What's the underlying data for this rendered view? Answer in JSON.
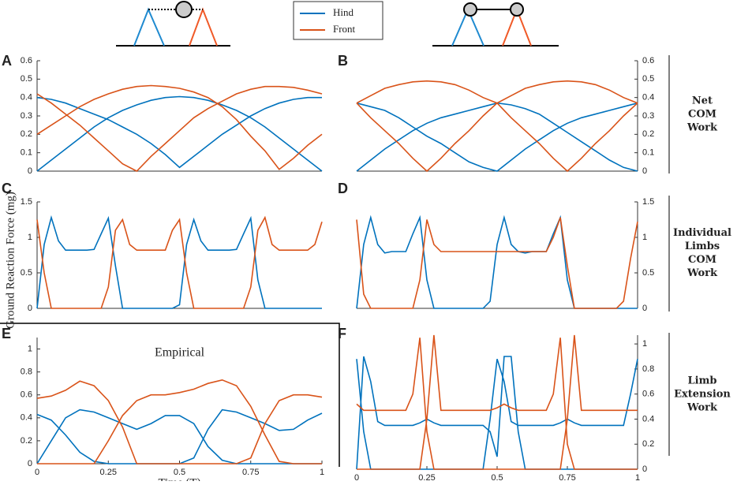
{
  "legend": [
    {
      "name": "Hind",
      "color": "#0072bd"
    },
    {
      "name": "Front",
      "color": "#d95319"
    }
  ],
  "ylabel": "Ground Reaction Force (mg)",
  "xlabel": "Time (T)",
  "row_labels": [
    [
      "Net",
      "COM",
      "Work"
    ],
    [
      "Individual",
      "Limbs",
      "COM",
      "Work"
    ],
    [
      "Limb",
      "Extension",
      "Work"
    ]
  ],
  "chart_data": [
    {
      "type": "line",
      "label": "A",
      "yaxis": "left",
      "x": [
        0,
        0.05,
        0.1,
        0.15,
        0.2,
        0.25,
        0.3,
        0.35,
        0.4,
        0.45,
        0.5,
        0.55,
        0.6,
        0.65,
        0.7,
        0.75,
        0.8,
        0.85,
        0.9,
        0.95,
        1
      ],
      "series": [
        {
          "color": "#0072bd",
          "values": [
            0,
            0.06,
            0.12,
            0.18,
            0.24,
            0.29,
            0.33,
            0.36,
            0.385,
            0.4,
            0.405,
            0.4,
            0.385,
            0.36,
            0.33,
            0.29,
            0.24,
            0.18,
            0.12,
            0.06,
            0
          ]
        },
        {
          "color": "#0072bd",
          "values": [
            0.4,
            0.39,
            0.37,
            0.34,
            0.31,
            0.28,
            0.24,
            0.2,
            0.15,
            0.09,
            0.02,
            0.08,
            0.14,
            0.2,
            0.25,
            0.3,
            0.34,
            0.37,
            0.39,
            0.4,
            0.4
          ]
        },
        {
          "color": "#d95319",
          "values": [
            0.2,
            0.25,
            0.3,
            0.35,
            0.39,
            0.42,
            0.445,
            0.46,
            0.465,
            0.46,
            0.45,
            0.43,
            0.4,
            0.35,
            0.28,
            0.19,
            0.11,
            0.01,
            0.07,
            0.14,
            0.2
          ]
        },
        {
          "color": "#d95319",
          "values": [
            0.42,
            0.37,
            0.31,
            0.25,
            0.18,
            0.11,
            0.04,
            0,
            0.08,
            0.15,
            0.22,
            0.29,
            0.34,
            0.38,
            0.42,
            0.445,
            0.46,
            0.46,
            0.455,
            0.44,
            0.42
          ]
        }
      ],
      "xlim": [
        0,
        1
      ],
      "ylim": [
        0,
        0.6
      ],
      "yticks": [
        0,
        0.1,
        0.2,
        0.3,
        0.4,
        0.5,
        0.6
      ]
    },
    {
      "type": "line",
      "label": "B",
      "yaxis": "right",
      "x": [
        0,
        0.05,
        0.1,
        0.15,
        0.2,
        0.25,
        0.3,
        0.35,
        0.4,
        0.45,
        0.5,
        0.55,
        0.6,
        0.65,
        0.7,
        0.75,
        0.8,
        0.85,
        0.9,
        0.95,
        1
      ],
      "series": [
        {
          "color": "#0072bd",
          "values": [
            0,
            0.06,
            0.12,
            0.17,
            0.22,
            0.26,
            0.29,
            0.31,
            0.33,
            0.35,
            0.37,
            0.36,
            0.34,
            0.31,
            0.26,
            0.21,
            0.16,
            0.11,
            0.06,
            0.02,
            0
          ]
        },
        {
          "color": "#0072bd",
          "values": [
            0.37,
            0.35,
            0.33,
            0.29,
            0.24,
            0.19,
            0.15,
            0.1,
            0.05,
            0.02,
            0,
            0.06,
            0.12,
            0.17,
            0.22,
            0.26,
            0.29,
            0.31,
            0.33,
            0.35,
            0.37
          ]
        },
        {
          "color": "#d95319",
          "values": [
            0.37,
            0.41,
            0.45,
            0.47,
            0.485,
            0.49,
            0.485,
            0.47,
            0.44,
            0.4,
            0.37,
            0.29,
            0.22,
            0.15,
            0.07,
            0,
            0.07,
            0.15,
            0.22,
            0.3,
            0.37
          ]
        },
        {
          "color": "#d95319",
          "values": [
            0.37,
            0.29,
            0.22,
            0.15,
            0.07,
            0,
            0.07,
            0.15,
            0.22,
            0.3,
            0.37,
            0.41,
            0.45,
            0.47,
            0.485,
            0.49,
            0.485,
            0.47,
            0.44,
            0.4,
            0.37
          ]
        }
      ],
      "xlim": [
        0,
        1
      ],
      "ylim": [
        0,
        0.6
      ],
      "yticks": [
        0,
        0.1,
        0.2,
        0.3,
        0.4,
        0.5,
        0.6
      ]
    },
    {
      "type": "line",
      "label": "C",
      "yaxis": "left",
      "x": [
        0,
        0.025,
        0.05,
        0.075,
        0.1,
        0.125,
        0.15,
        0.175,
        0.2,
        0.225,
        0.25,
        0.275,
        0.3,
        0.325,
        0.35,
        0.375,
        0.4,
        0.425,
        0.45,
        0.475,
        0.5,
        0.525,
        0.55,
        0.575,
        0.6,
        0.625,
        0.65,
        0.675,
        0.7,
        0.725,
        0.75,
        0.775,
        0.8,
        0.825,
        0.85,
        0.875,
        0.9,
        0.925,
        0.95,
        0.975,
        1
      ],
      "series": [
        {
          "color": "#0072bd",
          "values": [
            0,
            0.9,
            1.28,
            0.95,
            0.82,
            0.82,
            0.82,
            0.82,
            0.83,
            1.05,
            1.27,
            0.6,
            0,
            0,
            0,
            0,
            0,
            0,
            0,
            0,
            0.05,
            0.9,
            1.25,
            0.95,
            0.82,
            0.82,
            0.82,
            0.82,
            0.83,
            1.05,
            1.27,
            0.4,
            0,
            0,
            0,
            0,
            0,
            0,
            0,
            0,
            0
          ]
        },
        {
          "color": "#d95319",
          "values": [
            1.25,
            0.5,
            0,
            0,
            0,
            0,
            0,
            0,
            0,
            0,
            0.3,
            1.1,
            1.25,
            0.9,
            0.82,
            0.82,
            0.82,
            0.82,
            0.82,
            1.1,
            1.25,
            0.5,
            0,
            0,
            0,
            0,
            0,
            0,
            0,
            0,
            0.3,
            1.1,
            1.28,
            0.9,
            0.82,
            0.82,
            0.82,
            0.82,
            0.82,
            0.9,
            1.22
          ]
        }
      ],
      "xlim": [
        0,
        1
      ],
      "ylim": [
        0,
        1.5
      ],
      "yticks": [
        0,
        0.5,
        1,
        1.5
      ]
    },
    {
      "type": "line",
      "label": "D",
      "yaxis": "right",
      "x": [
        0,
        0.025,
        0.05,
        0.075,
        0.1,
        0.125,
        0.15,
        0.175,
        0.2,
        0.225,
        0.25,
        0.275,
        0.3,
        0.325,
        0.35,
        0.375,
        0.4,
        0.425,
        0.45,
        0.475,
        0.5,
        0.525,
        0.55,
        0.575,
        0.6,
        0.625,
        0.65,
        0.675,
        0.7,
        0.725,
        0.75,
        0.775,
        0.8,
        0.825,
        0.85,
        0.875,
        0.9,
        0.925,
        0.95,
        0.975,
        1
      ],
      "series": [
        {
          "color": "#0072bd",
          "values": [
            0,
            0.9,
            1.28,
            0.9,
            0.78,
            0.8,
            0.8,
            0.8,
            1.05,
            1.28,
            0.4,
            0,
            0,
            0,
            0,
            0,
            0,
            0,
            0,
            0.1,
            0.9,
            1.28,
            0.9,
            0.8,
            0.78,
            0.8,
            0.8,
            0.8,
            1.05,
            1.28,
            0.4,
            0,
            0,
            0,
            0,
            0,
            0,
            0,
            0,
            0,
            0
          ]
        },
        {
          "color": "#d95319",
          "values": [
            1.25,
            0.2,
            0,
            0,
            0,
            0,
            0,
            0,
            0,
            0.4,
            1.25,
            0.9,
            0.8,
            0.8,
            0.8,
            0.8,
            0.8,
            0.8,
            0.8,
            0.8,
            0.8,
            0.8,
            0.8,
            0.8,
            0.8,
            0.8,
            0.8,
            0.8,
            1.0,
            1.28,
            0.6,
            0,
            0,
            0,
            0,
            0,
            0,
            0,
            0.1,
            0.7,
            1.22
          ]
        }
      ],
      "xlim": [
        0,
        1
      ],
      "ylim": [
        0,
        1.5
      ],
      "yticks": [
        0,
        0.5,
        1,
        1.5
      ]
    },
    {
      "type": "line",
      "label": "E",
      "yaxis": "left",
      "annotation": "Empirical",
      "x": [
        0,
        0.05,
        0.1,
        0.15,
        0.2,
        0.25,
        0.3,
        0.35,
        0.4,
        0.45,
        0.5,
        0.55,
        0.6,
        0.65,
        0.7,
        0.75,
        0.8,
        0.85,
        0.9,
        0.95,
        1
      ],
      "series": [
        {
          "color": "#0072bd",
          "values": [
            0.43,
            0.38,
            0.25,
            0.1,
            0.02,
            0,
            0,
            0,
            0,
            0,
            0,
            0.05,
            0.3,
            0.47,
            0.45,
            0.4,
            0.35,
            0.29,
            0.3,
            0.38,
            0.44
          ]
        },
        {
          "color": "#0072bd",
          "values": [
            0,
            0.2,
            0.4,
            0.47,
            0.45,
            0.4,
            0.35,
            0.3,
            0.35,
            0.42,
            0.42,
            0.35,
            0.15,
            0.03,
            0,
            0,
            0,
            0,
            0,
            0,
            0
          ]
        },
        {
          "color": "#d95319",
          "values": [
            0.57,
            0.59,
            0.64,
            0.72,
            0.68,
            0.55,
            0.32,
            0,
            0,
            0,
            0,
            0,
            0,
            0,
            0,
            0.05,
            0.35,
            0.55,
            0.6,
            0.6,
            0.58
          ]
        },
        {
          "color": "#d95319",
          "values": [
            0,
            0,
            0,
            0,
            0,
            0.2,
            0.42,
            0.55,
            0.6,
            0.6,
            0.62,
            0.65,
            0.7,
            0.73,
            0.68,
            0.5,
            0.25,
            0.02,
            0,
            0,
            0
          ]
        }
      ],
      "xlim": [
        0,
        1
      ],
      "ylim": [
        0,
        1.1
      ],
      "yticks": [
        0,
        0.2,
        0.4,
        0.6,
        0.8,
        1
      ],
      "xticks": [
        0,
        0.25,
        0.5,
        0.75,
        1
      ]
    },
    {
      "type": "line",
      "label": "F",
      "yaxis": "right",
      "x": [
        0,
        0.025,
        0.05,
        0.075,
        0.1,
        0.125,
        0.15,
        0.175,
        0.2,
        0.225,
        0.25,
        0.275,
        0.3,
        0.325,
        0.35,
        0.375,
        0.4,
        0.425,
        0.45,
        0.475,
        0.5,
        0.525,
        0.55,
        0.575,
        0.6,
        0.625,
        0.65,
        0.675,
        0.7,
        0.725,
        0.75,
        0.775,
        0.8,
        0.825,
        0.85,
        0.875,
        0.9,
        0.925,
        0.95,
        0.975,
        1
      ],
      "series": [
        {
          "color": "#0072bd",
          "values": [
            0.88,
            0.3,
            0,
            0,
            0,
            0,
            0,
            0,
            0,
            0,
            0,
            0,
            0,
            0,
            0,
            0,
            0,
            0,
            0,
            0.4,
            0.88,
            0.7,
            0.38,
            0.35,
            0.35,
            0.35,
            0.35,
            0.35,
            0.35,
            0.37,
            0.4,
            0.37,
            0.35,
            0.35,
            0.35,
            0.35,
            0.35,
            0.35,
            0.35,
            0.6,
            0.88
          ]
        },
        {
          "color": "#0072bd",
          "values": [
            0,
            0.9,
            0.7,
            0.38,
            0.35,
            0.35,
            0.35,
            0.35,
            0.35,
            0.37,
            0.4,
            0.37,
            0.35,
            0.35,
            0.35,
            0.35,
            0.35,
            0.35,
            0.35,
            0.3,
            0.1,
            0.9,
            0.9,
            0.3,
            0,
            0,
            0,
            0,
            0,
            0,
            0,
            0,
            0,
            0,
            0,
            0,
            0,
            0,
            0,
            0,
            0
          ]
        },
        {
          "color": "#d95319",
          "values": [
            0.52,
            0.47,
            0.47,
            0.47,
            0.47,
            0.47,
            0.47,
            0.47,
            0.6,
            1.05,
            0.3,
            0,
            0,
            0,
            0,
            0,
            0,
            0,
            0,
            0,
            0,
            0,
            0,
            0,
            0,
            0,
            0,
            0,
            0,
            0,
            0.4,
            1.07,
            0.47,
            0.47,
            0.47,
            0.47,
            0.47,
            0.47,
            0.47,
            0.47,
            0.47
          ]
        },
        {
          "color": "#d95319",
          "values": [
            0,
            0,
            0,
            0,
            0,
            0,
            0,
            0,
            0,
            0,
            0.4,
            1.07,
            0.47,
            0.47,
            0.47,
            0.47,
            0.47,
            0.47,
            0.47,
            0.47,
            0.49,
            0.52,
            0.49,
            0.47,
            0.47,
            0.47,
            0.47,
            0.47,
            0.6,
            1.05,
            0.2,
            0,
            0,
            0,
            0,
            0,
            0,
            0,
            0,
            0,
            0
          ]
        }
      ],
      "xlim": [
        0,
        1
      ],
      "ylim": [
        0,
        1.07
      ],
      "yticks": [
        0,
        0.2,
        0.4,
        0.6,
        0.8,
        1
      ],
      "xticks": [
        0,
        0.25,
        0.5,
        0.75,
        1
      ]
    }
  ]
}
